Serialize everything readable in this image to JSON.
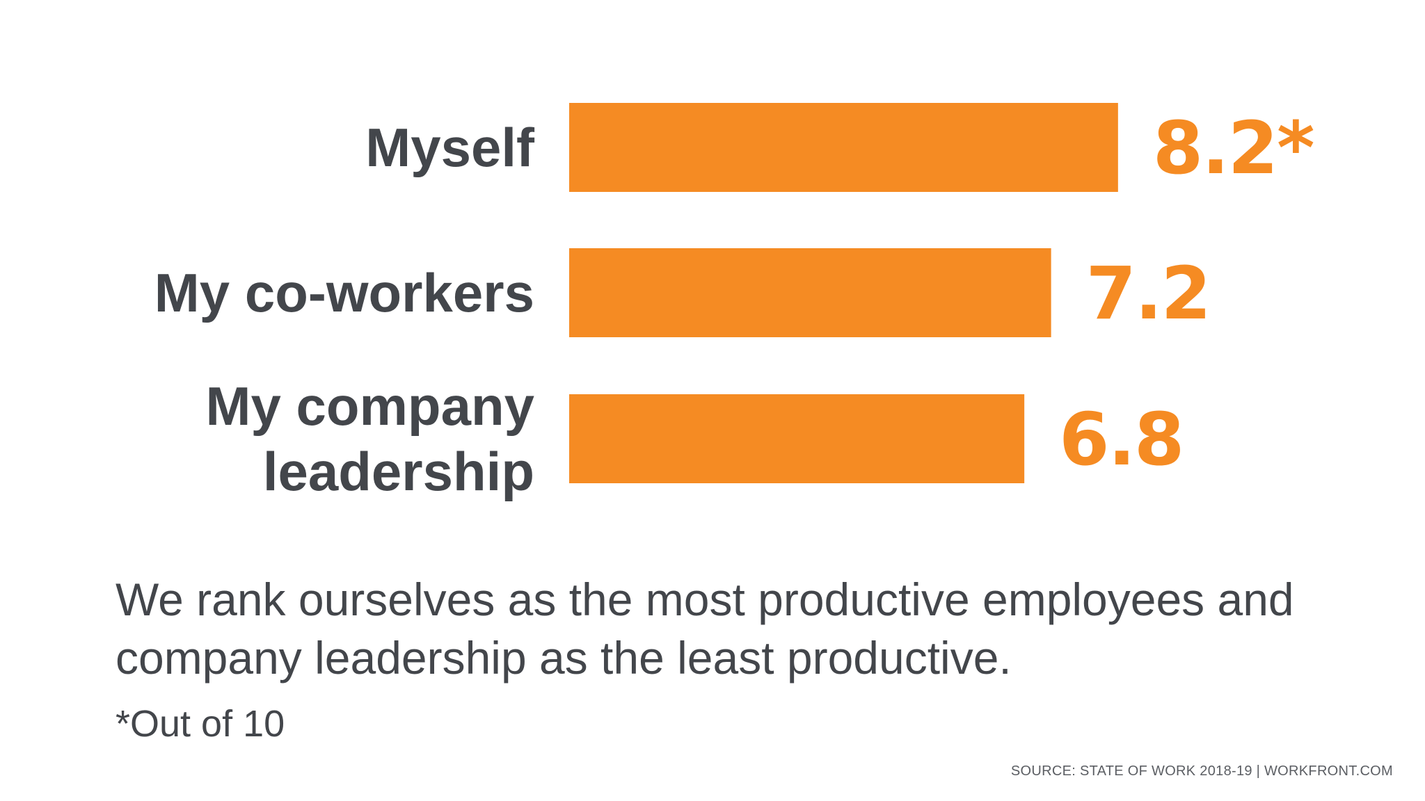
{
  "chart_data": {
    "type": "bar",
    "orientation": "horizontal",
    "categories": [
      "Myself",
      "My co-workers",
      "My company leadership"
    ],
    "category_lines": [
      [
        "Myself"
      ],
      [
        "My co-workers"
      ],
      [
        "My company",
        "leadership"
      ]
    ],
    "values": [
      8.2,
      7.2,
      6.8
    ],
    "value_labels": [
      "8.2*",
      "7.2",
      "6.8"
    ],
    "xlim": [
      0,
      10
    ],
    "grid": false,
    "title": "",
    "xlabel": "",
    "ylabel": "",
    "bar_color": "#f58b23"
  },
  "caption": "We rank ourselves as the most productive employees and company leadership as the least productive.",
  "footnote": "*Out of 10",
  "source": "SOURCE: STATE OF WORK 2018-19  |  WORKFRONT.COM",
  "colors": {
    "accent": "#f58b23",
    "text": "#43464b"
  }
}
